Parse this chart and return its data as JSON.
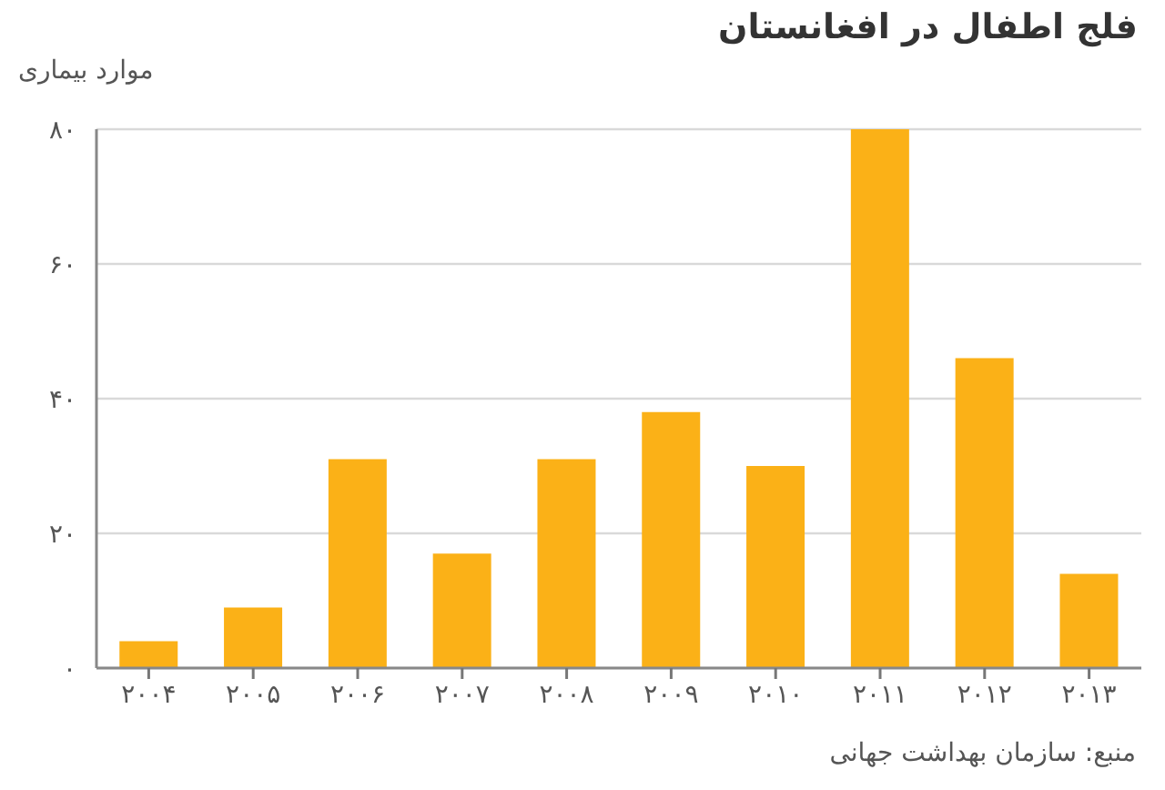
{
  "chart_data": {
    "type": "bar",
    "title": "فلج اطفال در افغانستان",
    "ylabel": "موارد بیماری",
    "annotations": [
      "منبع: سازمان بهداشت جهانی"
    ],
    "categories": [
      "۲۰۰۴",
      "۲۰۰۵",
      "۲۰۰۶",
      "۲۰۰۷",
      "۲۰۰۸",
      "۲۰۰۹",
      "۲۰۱۰",
      "۲۰۱۱",
      "۲۰۱۲",
      "۲۰۱۳"
    ],
    "values": [
      4,
      9,
      31,
      17,
      31,
      38,
      30,
      80,
      46,
      14
    ],
    "color": "#fbb117",
    "ylim": [
      0,
      80
    ],
    "yticks": [
      {
        "value": 0,
        "label": "۰"
      },
      {
        "value": 20,
        "label": "۲۰"
      },
      {
        "value": 40,
        "label": "۴۰"
      },
      {
        "value": 60,
        "label": "۶۰"
      },
      {
        "value": 80,
        "label": "۸۰"
      }
    ],
    "grid": "y"
  }
}
